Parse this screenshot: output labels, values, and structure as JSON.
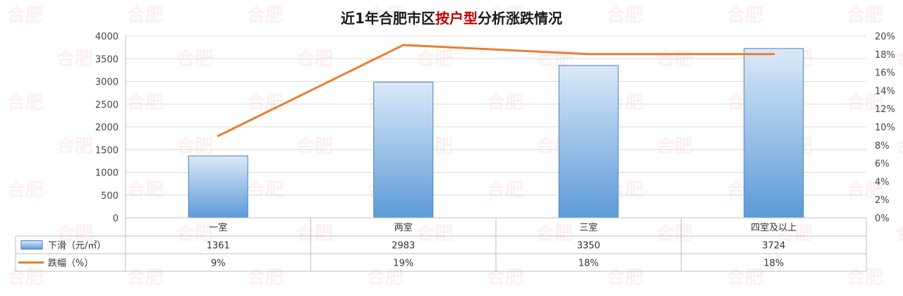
{
  "watermark": "合肥",
  "chart_data": {
    "type": "bar",
    "title_parts": [
      "近1年合肥市区",
      "按户型",
      "分析涨跌情况"
    ],
    "categories": [
      "一室",
      "两室",
      "三室",
      "四室及以上"
    ],
    "series": [
      {
        "name": "下滑（元/㎡）",
        "type": "bar",
        "axis": "left",
        "values": [
          1361,
          2983,
          3350,
          3724
        ],
        "labels": [
          "1361",
          "2983",
          "3350",
          "3724"
        ]
      },
      {
        "name": "跌幅（%）",
        "type": "line",
        "axis": "right",
        "values": [
          9,
          19,
          18,
          18
        ],
        "labels": [
          "9%",
          "19%",
          "18%",
          "18%"
        ]
      }
    ],
    "y_left": {
      "ticks": [
        "0",
        "500",
        "1000",
        "1500",
        "2000",
        "2500",
        "3000",
        "3500",
        "4000"
      ],
      "range": [
        0,
        4000
      ]
    },
    "y_right": {
      "ticks": [
        "0%",
        "2%",
        "4%",
        "6%",
        "8%",
        "10%",
        "12%",
        "14%",
        "16%",
        "18%",
        "20%"
      ],
      "range": [
        0,
        20
      ]
    },
    "grid": true,
    "legend_placement": "data-table-left",
    "colors": {
      "bar_top": "#dbe9f8",
      "bar_bottom": "#5c9ad8",
      "bar_stroke": "#4a80bd",
      "line": "#ed7d31",
      "title": "#1a1a1a",
      "title_highlight": "#c00000",
      "grid": "#d9d9d9"
    }
  }
}
